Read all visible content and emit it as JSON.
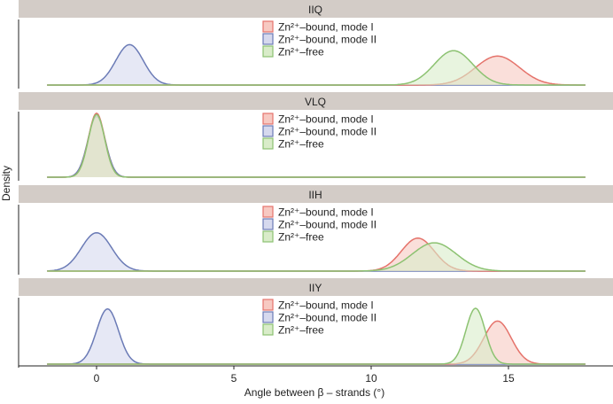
{
  "chart_data": {
    "type": "area",
    "subtype": "faceted density",
    "xlabel": "Angle between β – strands (°)",
    "ylabel": "Density",
    "xlim": [
      -2,
      18
    ],
    "x_ticks": [
      "0",
      "5",
      "10",
      "15"
    ],
    "grid": false,
    "legend_placement": "top-center in each panel",
    "series_colors": {
      "Zn²⁺–bound, mode I": {
        "line": "#e5736b",
        "fill": "#f7c9c2"
      },
      "Zn²⁺–bound, mode II": {
        "line": "#6b7bb6",
        "fill": "#d6d9ee"
      },
      "Zn²⁺–free": {
        "line": "#8cc271",
        "fill": "#d9ecc9"
      }
    },
    "legend": [
      "Zn²⁺–bound, mode I",
      "Zn²⁺–bound, mode II",
      "Zn²⁺–free"
    ],
    "panels": [
      {
        "title": "IIQ",
        "series": [
          {
            "name": "Zn²⁺–bound, mode I",
            "peak_x": 14.6,
            "sd": 0.8,
            "relative_height": 0.43
          },
          {
            "name": "Zn²⁺–bound, mode II",
            "peak_x": 1.2,
            "sd": 0.5,
            "relative_height": 0.6
          },
          {
            "name": "Zn²⁺–free",
            "peak_x": 13.0,
            "sd": 0.7,
            "relative_height": 0.51
          }
        ]
      },
      {
        "title": "VLQ",
        "series": [
          {
            "name": "Zn²⁺–bound, mode I",
            "peak_x": 0.0,
            "sd": 0.3,
            "relative_height": 0.95
          },
          {
            "name": "Zn²⁺–bound, mode II",
            "peak_x": 0.0,
            "sd": 0.32,
            "relative_height": 0.9
          },
          {
            "name": "Zn²⁺–free",
            "peak_x": 0.0,
            "sd": 0.3,
            "relative_height": 0.93
          }
        ]
      },
      {
        "title": "IIH",
        "series": [
          {
            "name": "Zn²⁺–bound, mode I",
            "peak_x": 11.7,
            "sd": 0.6,
            "relative_height": 0.49
          },
          {
            "name": "Zn²⁺–bound, mode II",
            "peak_x": 0.0,
            "sd": 0.55,
            "relative_height": 0.57
          },
          {
            "name": "Zn²⁺–free",
            "peak_x": 12.3,
            "sd": 0.8,
            "relative_height": 0.42
          }
        ]
      },
      {
        "title": "IIY",
        "series": [
          {
            "name": "Zn²⁺–bound, mode I",
            "peak_x": 14.6,
            "sd": 0.5,
            "relative_height": 0.64
          },
          {
            "name": "Zn²⁺–bound, mode II",
            "peak_x": 0.4,
            "sd": 0.4,
            "relative_height": 0.82
          },
          {
            "name": "Zn²⁺–free",
            "peak_x": 13.8,
            "sd": 0.35,
            "relative_height": 0.83
          }
        ]
      }
    ]
  }
}
